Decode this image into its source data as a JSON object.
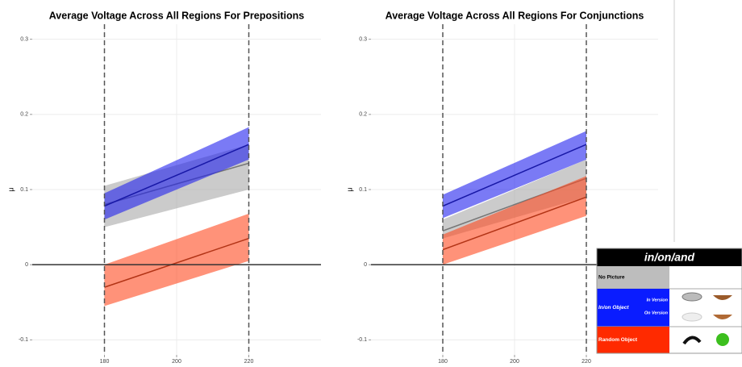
{
  "chart_data": [
    {
      "type": "ribbon-line",
      "title": "Average Voltage Across All Regions For Prepositions",
      "ylabel": "μ",
      "x": [
        180,
        220
      ],
      "xlim": [
        160,
        240
      ],
      "xticks": [
        180,
        200,
        220
      ],
      "ylim": [
        -0.12,
        0.32
      ],
      "yticks": [
        -0.1,
        0.0,
        0.1,
        0.2,
        0.3
      ],
      "grid": true,
      "vlines": [
        180,
        220
      ],
      "hline": 0,
      "series": [
        {
          "color": "#a8a8a8",
          "values": [
            0.08,
            0.135
          ],
          "lower": [
            0.05,
            0.1
          ],
          "upper": [
            0.105,
            0.16
          ]
        },
        {
          "color": "#2222ee",
          "values": [
            0.078,
            0.16
          ],
          "lower": [
            0.06,
            0.14
          ],
          "upper": [
            0.095,
            0.183
          ]
        },
        {
          "color": "#ff4a20",
          "values": [
            -0.03,
            0.035
          ],
          "lower": [
            -0.055,
            0.005
          ],
          "upper": [
            0.0,
            0.068
          ]
        }
      ]
    },
    {
      "type": "ribbon-line",
      "title": "Average Voltage Across All Regions For Conjunctions",
      "ylabel": "μ",
      "x": [
        180,
        220
      ],
      "xlim": [
        160,
        240
      ],
      "xticks": [
        180,
        200,
        220
      ],
      "ylim": [
        -0.12,
        0.32
      ],
      "yticks": [
        -0.1,
        0.0,
        0.1,
        0.2,
        0.3
      ],
      "grid": true,
      "vlines": [
        180,
        220
      ],
      "hline": 0,
      "series": [
        {
          "color": "#a8a8a8",
          "values": [
            0.045,
            0.115
          ],
          "lower": [
            0.035,
            0.09
          ],
          "upper": [
            0.06,
            0.14
          ]
        },
        {
          "color": "#2222ee",
          "values": [
            0.078,
            0.16
          ],
          "lower": [
            0.062,
            0.14
          ],
          "upper": [
            0.093,
            0.178
          ]
        },
        {
          "color": "#ff4a20",
          "values": [
            0.02,
            0.09
          ],
          "lower": [
            0.0,
            0.065
          ],
          "upper": [
            0.04,
            0.118
          ]
        }
      ]
    }
  ],
  "legend": {
    "title": "in/on/and",
    "rows": [
      {
        "label": "No Picture",
        "color": "#bdbdbd"
      },
      {
        "label": "In/on Object",
        "color": "#0a1cff",
        "versions": [
          "In Version",
          "On Version"
        ]
      },
      {
        "label": "Random Object",
        "color": "#ff2a00"
      }
    ]
  }
}
